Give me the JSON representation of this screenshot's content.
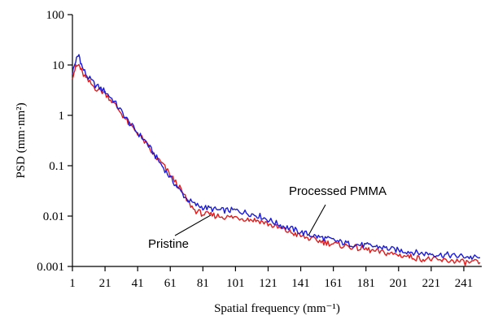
{
  "chart_data": {
    "type": "line",
    "title": "",
    "xlabel": "Spatial frequency (mm⁻¹)",
    "ylabel": "PSD (mm·nm²)",
    "x_ticks": [
      1,
      21,
      41,
      61,
      81,
      101,
      121,
      141,
      161,
      181,
      201,
      221,
      241
    ],
    "y_ticks": [
      0.001,
      0.01,
      0.1,
      1,
      10,
      100
    ],
    "y_tick_labels": [
      "0.001",
      "0.01",
      "0.1",
      "1",
      "10",
      "100"
    ],
    "xlim": [
      1,
      252
    ],
    "ylim": [
      0.001,
      100
    ],
    "yscale": "log",
    "grid": false,
    "series": [
      {
        "name": "Processed PMMA",
        "color": "#1a1adb",
        "x": [
          1,
          3,
          5,
          7,
          10,
          15,
          21,
          26,
          31,
          36,
          41,
          46,
          51,
          56,
          61,
          66,
          71,
          76,
          81,
          86,
          91,
          96,
          101,
          106,
          111,
          116,
          121,
          126,
          131,
          136,
          141,
          146,
          151,
          156,
          161,
          166,
          171,
          176,
          181,
          186,
          191,
          196,
          201,
          206,
          211,
          216,
          221,
          226,
          231,
          236,
          241,
          246,
          251
        ],
        "y": [
          7,
          12,
          16,
          9,
          6,
          4,
          3,
          2,
          1.2,
          0.7,
          0.45,
          0.3,
          0.17,
          0.1,
          0.058,
          0.035,
          0.022,
          0.017,
          0.015,
          0.014,
          0.013,
          0.013,
          0.013,
          0.012,
          0.011,
          0.01,
          0.0085,
          0.0072,
          0.0062,
          0.0055,
          0.0048,
          0.0043,
          0.0039,
          0.0036,
          0.0033,
          0.003,
          0.0028,
          0.0027,
          0.0026,
          0.0025,
          0.0024,
          0.0022,
          0.0021,
          0.002,
          0.0019,
          0.0018,
          0.0018,
          0.0017,
          0.0017,
          0.0016,
          0.0016,
          0.0015,
          0.0015
        ]
      },
      {
        "name": "Pristine",
        "color": "#e01b1b",
        "x": [
          1,
          3,
          5,
          7,
          10,
          15,
          21,
          26,
          31,
          36,
          41,
          46,
          51,
          56,
          61,
          66,
          71,
          76,
          81,
          86,
          91,
          96,
          101,
          106,
          111,
          116,
          121,
          126,
          131,
          136,
          141,
          146,
          151,
          156,
          161,
          166,
          171,
          176,
          181,
          186,
          191,
          196,
          201,
          206,
          211,
          216,
          221,
          226,
          231,
          236,
          241,
          246,
          251
        ],
        "y": [
          6,
          9,
          10,
          7,
          5,
          3.5,
          2.8,
          1.8,
          1.1,
          0.65,
          0.45,
          0.28,
          0.16,
          0.11,
          0.065,
          0.04,
          0.021,
          0.013,
          0.011,
          0.0105,
          0.01,
          0.0095,
          0.0095,
          0.009,
          0.0085,
          0.008,
          0.007,
          0.006,
          0.0053,
          0.0046,
          0.004,
          0.0036,
          0.0033,
          0.003,
          0.0028,
          0.0026,
          0.0025,
          0.0023,
          0.0022,
          0.002,
          0.0019,
          0.0018,
          0.0017,
          0.0016,
          0.0015,
          0.0014,
          0.0014,
          0.0013,
          0.0013,
          0.0013,
          0.0012,
          0.0012,
          0.0012
        ]
      }
    ],
    "annotations": [
      {
        "text": "Processed PMMA",
        "target_x": 146,
        "target_y": 0.0043
      },
      {
        "text": "Pristine",
        "target_x": 86,
        "target_y": 0.0105
      }
    ]
  }
}
